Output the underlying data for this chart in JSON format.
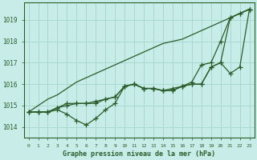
{
  "bg_color": "#c8ede8",
  "grid_color": "#a8d8d0",
  "line_color": "#2a5c2a",
  "xlabel": "Graphe pression niveau de la mer (hPa)",
  "ylim": [
    1013.5,
    1019.8
  ],
  "yticks": [
    1014,
    1015,
    1016,
    1017,
    1018,
    1019
  ],
  "xlim": [
    -0.5,
    23.5
  ],
  "x_labels": [
    "0",
    "1",
    "2",
    "3",
    "4",
    "5",
    "6",
    "7",
    "8",
    "9",
    "10",
    "11",
    "12",
    "13",
    "14",
    "15",
    "16",
    "17",
    "18",
    "19",
    "20",
    "21",
    "22",
    "23"
  ],
  "series": {
    "straight": [
      1014.7,
      1015.0,
      1015.3,
      1015.5,
      1015.8,
      1016.1,
      1016.3,
      1016.5,
      1016.7,
      1016.9,
      1017.1,
      1017.3,
      1017.5,
      1017.7,
      1017.9,
      1018.0,
      1018.1,
      1018.3,
      1018.5,
      1018.7,
      1018.9,
      1019.1,
      1019.3,
      1019.5
    ],
    "dip": [
      1014.7,
      1014.7,
      1014.7,
      1014.8,
      1014.6,
      1014.3,
      1014.1,
      1014.4,
      1014.8,
      1015.1,
      1015.9,
      1016.0,
      1015.8,
      1015.8,
      1015.7,
      1015.7,
      1015.9,
      1016.0,
      1016.0,
      1016.8,
      1017.0,
      1019.1,
      1019.3,
      1019.5
    ],
    "mid1": [
      1014.7,
      1014.7,
      1014.7,
      1014.9,
      1015.0,
      1015.1,
      1015.1,
      1015.2,
      1015.3,
      1015.4,
      1015.9,
      1016.0,
      1015.8,
      1015.8,
      1015.7,
      1015.7,
      1015.9,
      1016.0,
      1016.0,
      1016.8,
      1017.0,
      1016.5,
      1016.8,
      1019.5
    ],
    "mid2": [
      1014.7,
      1014.7,
      1014.7,
      1014.9,
      1015.1,
      1015.1,
      1015.1,
      1015.1,
      1015.3,
      1015.4,
      1015.9,
      1016.0,
      1015.8,
      1015.8,
      1015.7,
      1015.8,
      1015.9,
      1016.1,
      1016.9,
      1017.0,
      1018.0,
      1019.1,
      1019.3,
      1019.5
    ]
  }
}
